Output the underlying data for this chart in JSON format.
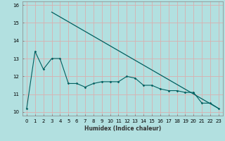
{
  "xlabel": "Humidex (Indice chaleur)",
  "bg_color": "#b2e0e0",
  "grid_color": "#d9b0b0",
  "line_color": "#006060",
  "line1_x": [
    3,
    23
  ],
  "line1_y": [
    15.6,
    10.2
  ],
  "line2_x": [
    0,
    1,
    2,
    3,
    4,
    5,
    6,
    7,
    8,
    9,
    10,
    11,
    12,
    13,
    14,
    15,
    16,
    17,
    18,
    19,
    20,
    21,
    22,
    23
  ],
  "line2_y": [
    10.2,
    13.4,
    12.4,
    13.0,
    13.0,
    11.6,
    11.6,
    11.4,
    11.6,
    11.7,
    11.7,
    11.7,
    12.0,
    11.9,
    11.5,
    11.5,
    11.3,
    11.2,
    11.2,
    11.1,
    11.1,
    10.5,
    10.5,
    10.2
  ],
  "xlim": [
    -0.5,
    23.5
  ],
  "ylim": [
    9.8,
    16.2
  ],
  "yticks": [
    10,
    11,
    12,
    13,
    14,
    15,
    16
  ],
  "xticks": [
    0,
    1,
    2,
    3,
    4,
    5,
    6,
    7,
    8,
    9,
    10,
    11,
    12,
    13,
    14,
    15,
    16,
    17,
    18,
    19,
    20,
    21,
    22,
    23
  ],
  "axis_fontsize": 5.5,
  "tick_fontsize": 5.0
}
